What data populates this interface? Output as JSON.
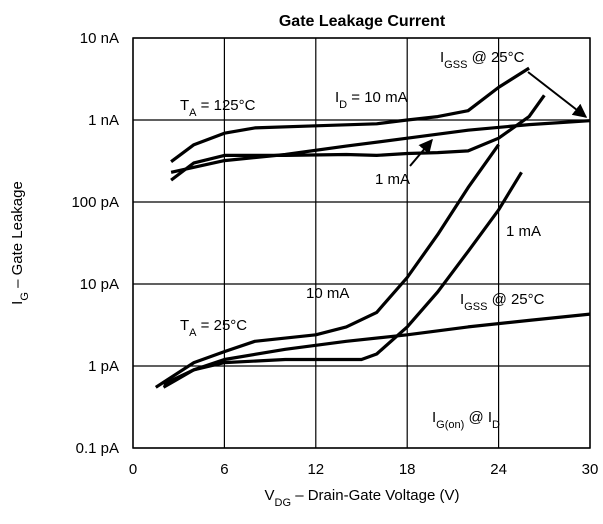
{
  "chart_data": {
    "type": "line",
    "title": "Gate Leakage Current",
    "xlabel": [
      "V",
      "DG",
      " – Drain-Gate Voltage (V)"
    ],
    "ylabel": [
      "I",
      "G",
      " – Gate Leakage"
    ],
    "xlim": [
      0,
      30
    ],
    "xticks": [
      0,
      6,
      12,
      18,
      24,
      30
    ],
    "ylim": [
      0.1,
      10000
    ],
    "log_y": true,
    "grid": true,
    "yticks": [
      {
        "value": 0.1,
        "label": "0.1 pA"
      },
      {
        "value": 1,
        "label": "1 pA"
      },
      {
        "value": 10,
        "label": "10 pA"
      },
      {
        "value": 100,
        "label": "100 pA"
      },
      {
        "value": 1000,
        "label": "1 nA"
      },
      {
        "value": 10000,
        "label": "10 nA"
      }
    ],
    "series": [
      {
        "color": "#000000",
        "x": [
          2.5,
          4,
          6,
          8,
          12,
          16,
          18,
          20,
          22,
          24,
          26
        ],
        "values": [
          310,
          500,
          690,
          800,
          850,
          900,
          1000,
          1100,
          1300,
          2500,
          4300
        ]
      },
      {
        "color": "#000000",
        "x": [
          2.5,
          6,
          10,
          14,
          18,
          22,
          26,
          30
        ],
        "values": [
          230,
          320,
          380,
          480,
          600,
          750,
          880,
          980
        ]
      },
      {
        "color": "#000000",
        "x": [
          2.5,
          4,
          6,
          10,
          14,
          16,
          18,
          20,
          22,
          24,
          26,
          27
        ],
        "values": [
          185,
          300,
          370,
          370,
          380,
          370,
          390,
          400,
          420,
          600,
          1100,
          2000
        ]
      },
      {
        "color": "#000000",
        "x": [
          1.5,
          4,
          6,
          8,
          12,
          14,
          16,
          18,
          20,
          22,
          24
        ],
        "values": [
          0.55,
          1.1,
          1.5,
          2.0,
          2.4,
          3,
          4.5,
          12,
          40,
          150,
          500
        ]
      },
      {
        "color": "#000000",
        "x": [
          2,
          4,
          6,
          10,
          15,
          16,
          18,
          20,
          22,
          24,
          25.5
        ],
        "values": [
          0.55,
          0.9,
          1.1,
          1.2,
          1.2,
          1.4,
          3,
          8,
          25,
          80,
          230
        ]
      },
      {
        "color": "#000000",
        "x": [
          2,
          4,
          6,
          10,
          14,
          18,
          22,
          26,
          30
        ],
        "values": [
          0.6,
          0.9,
          1.2,
          1.6,
          2.0,
          2.4,
          3,
          3.6,
          4.3
        ]
      }
    ],
    "annotations": [
      [
        "I",
        "GSS",
        " @ 25°C"
      ],
      [
        "T",
        "A",
        " = 125°C"
      ],
      [
        "I",
        "D",
        " = 10 mA"
      ],
      [
        "1 mA"
      ],
      [
        "1 mA"
      ],
      [
        "10 mA"
      ],
      [
        "I",
        "GSS",
        " @ 25°C"
      ],
      [
        "T",
        "A",
        " = 25°C"
      ],
      [
        "I",
        "G(on)",
        " @ I",
        "D"
      ]
    ]
  }
}
